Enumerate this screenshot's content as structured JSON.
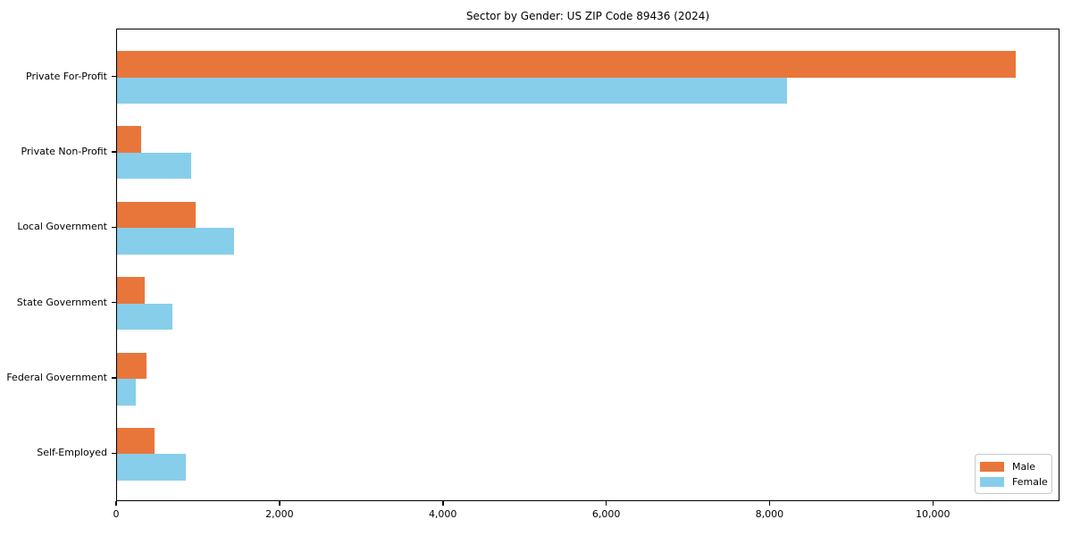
{
  "chart_data": {
    "type": "bar",
    "orientation": "horizontal",
    "title": "Sector by Gender: US ZIP Code 89436 (2024)",
    "categories": [
      "Private For-Profit",
      "Private Non-Profit",
      "Local Government",
      "State Government",
      "Federal Government",
      "Self-Employed"
    ],
    "series": [
      {
        "name": "Male",
        "color": "#e8763b",
        "values": [
          11000,
          300,
          960,
          340,
          360,
          460
        ]
      },
      {
        "name": "Female",
        "color": "#87ceeb",
        "values": [
          8200,
          910,
          1430,
          680,
          230,
          840
        ]
      }
    ],
    "xlabel": "",
    "ylabel": "",
    "xlim": [
      0,
      11550
    ],
    "xticks": [
      0,
      2000,
      4000,
      6000,
      8000,
      10000
    ],
    "xtick_labels": [
      "0",
      "2,000",
      "4,000",
      "6,000",
      "8,000",
      "10,000"
    ],
    "legend": {
      "position": "lower-right"
    },
    "grid": false,
    "axis_color": "#000000",
    "text_color": "#000000",
    "background_color": "#ffffff"
  }
}
